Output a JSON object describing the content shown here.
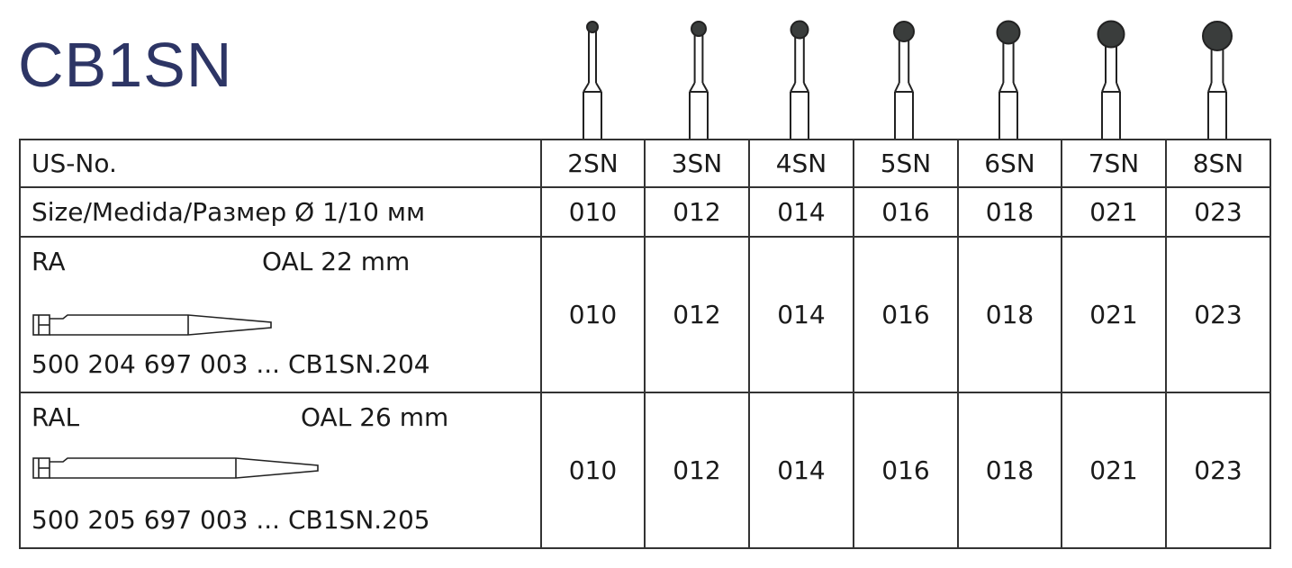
{
  "title": "CB1SN",
  "table": {
    "sizes": [
      "2SN",
      "3SN",
      "4SN",
      "5SN",
      "6SN",
      "7SN",
      "8SN"
    ],
    "us_label": "US-No.",
    "size_label": "Size/Medida/Размер Ø 1/10 мм",
    "size_values": [
      "010",
      "012",
      "014",
      "016",
      "018",
      "021",
      "023"
    ],
    "ra": {
      "name": "RA",
      "oal": "OAL 22 mm",
      "code": "500 204 697 003 ... CB1SN.204",
      "values": [
        "010",
        "012",
        "014",
        "016",
        "018",
        "021",
        "023"
      ]
    },
    "ral": {
      "name": "RAL",
      "oal": "OAL 26 mm",
      "code": "500 205 697 003 ...  CB1SN.205",
      "values": [
        "010",
        "012",
        "014",
        "016",
        "018",
        "021",
        "023"
      ]
    }
  }
}
